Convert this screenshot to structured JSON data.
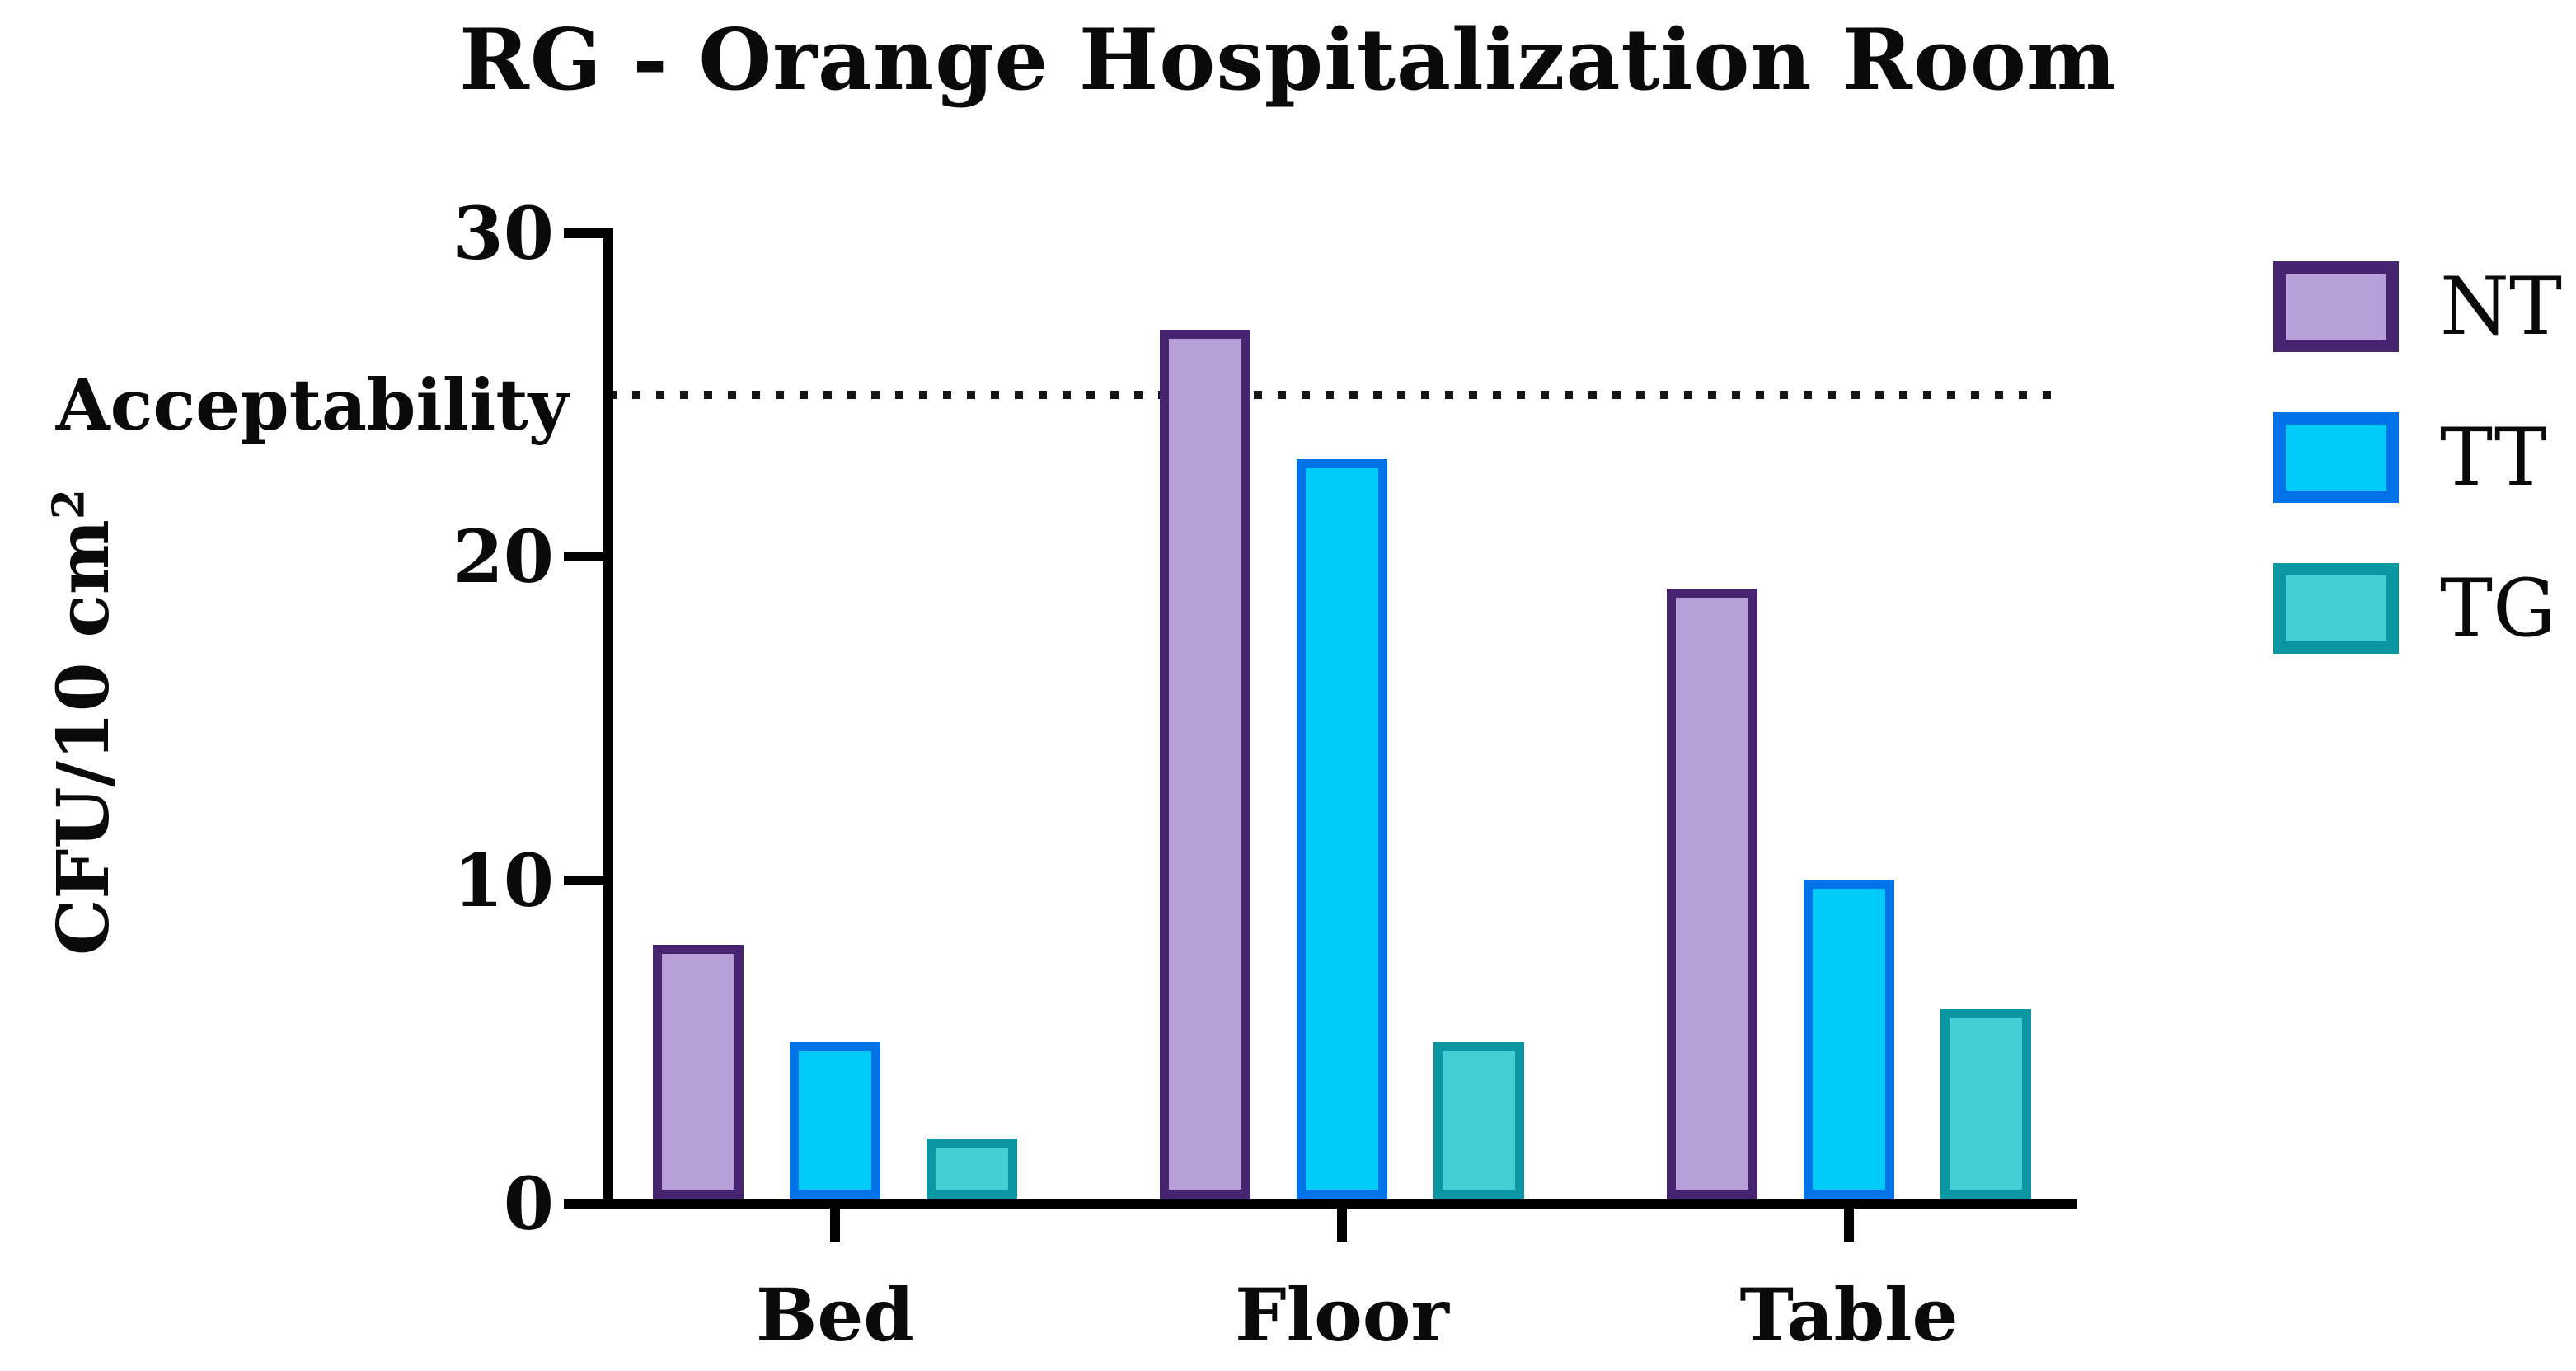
{
  "chart_data": {
    "type": "bar",
    "title": "RG - Orange Hospitalization Room",
    "ylabel": "CFU/10 cm²",
    "ylabel_base": "CFU/10 cm",
    "ylabel_exponent": "2",
    "xlabel": "",
    "categories": [
      "Bed",
      "Floor",
      "Table"
    ],
    "series": [
      {
        "name": "NT",
        "values": [
          8,
          27,
          19
        ],
        "fill": "#b79fda",
        "border": "#46246f"
      },
      {
        "name": "TT",
        "values": [
          5,
          23,
          10
        ],
        "fill": "#00cbf8",
        "border": "#0073e8"
      },
      {
        "name": "TG",
        "values": [
          2,
          5,
          6
        ],
        "fill": "#44cfd4",
        "border": "#0c96a4"
      }
    ],
    "ylim": [
      0,
      30
    ],
    "yticks": [
      0,
      10,
      20,
      30
    ],
    "grid": false,
    "legend_position": "right",
    "reference_line": {
      "label": "Acceptability",
      "value": 25,
      "style": "dotted"
    }
  }
}
